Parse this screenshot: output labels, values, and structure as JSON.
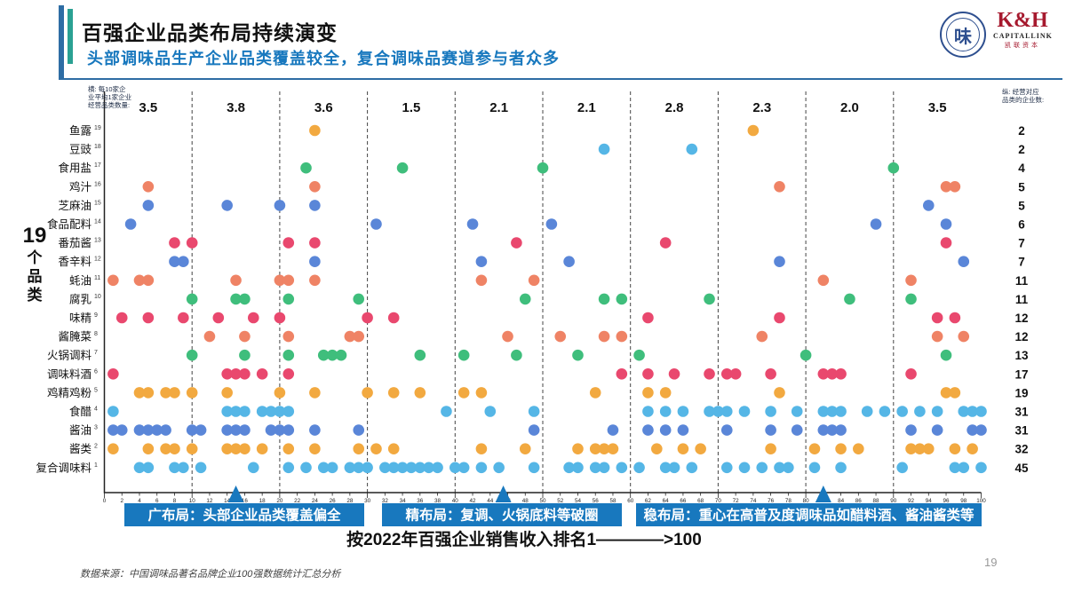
{
  "header": {
    "title": "百强企业品类布局持续演变",
    "subtitle": "头部调味品生产企业品类覆盖较全，复合调味品赛道参与者众多"
  },
  "logos": {
    "association_mark": "味",
    "capitallink_mark": "K&H",
    "capitallink_name": "CAPITALLINK",
    "capitallink_cn": "凯联资本"
  },
  "left_caption": {
    "number": "19",
    "chars": [
      "个",
      "品",
      "类"
    ]
  },
  "chart_data": {
    "type": "scatter",
    "title": "",
    "xlabel": "按2022年百强企业销售收入排名1————>100",
    "x_range": [
      0,
      100
    ],
    "x_tick_step": 2,
    "grid": "dashed vertical dividers every 10 ranks",
    "left_note_lines": [
      "横: 每10家企",
      "业平均1家企业",
      "经营品类数量:"
    ],
    "right_note_lines": [
      "纵: 经营对应",
      "品类的企业数:"
    ],
    "decade_averages": [
      "3.5",
      "3.8",
      "3.6",
      "1.5",
      "2.1",
      "2.1",
      "2.8",
      "2.3",
      "2.0",
      "3.5"
    ],
    "colors": {
      "orange": "#f2a940",
      "lightblue": "#55b6e6",
      "blue": "#5a86d8",
      "green": "#3fbe7c",
      "salmon": "#ef8365",
      "crimson": "#e9486e"
    },
    "categories": [
      {
        "label": "鱼露",
        "index": 19,
        "count": 2,
        "color": "orange",
        "ranks": [
          24,
          74
        ]
      },
      {
        "label": "豆豉",
        "index": 18,
        "count": 2,
        "color": "lightblue",
        "ranks": [
          57,
          67
        ]
      },
      {
        "label": "食用盐",
        "index": 17,
        "count": 4,
        "color": "green",
        "ranks": [
          23,
          34,
          50,
          90
        ]
      },
      {
        "label": "鸡汁",
        "index": 16,
        "count": 5,
        "color": "salmon",
        "ranks": [
          5,
          24,
          77,
          96,
          97
        ]
      },
      {
        "label": "芝麻油",
        "index": 15,
        "count": 5,
        "color": "blue",
        "ranks": [
          5,
          14,
          20,
          24,
          94
        ]
      },
      {
        "label": "食品配料",
        "index": 14,
        "count": 6,
        "color": "blue",
        "ranks": [
          3,
          31,
          42,
          51,
          88,
          96
        ]
      },
      {
        "label": "番茄酱",
        "index": 13,
        "count": 7,
        "color": "crimson",
        "ranks": [
          8,
          10,
          21,
          24,
          47,
          64,
          96
        ]
      },
      {
        "label": "香辛料",
        "index": 12,
        "count": 7,
        "color": "blue",
        "ranks": [
          8,
          9,
          24,
          43,
          53,
          77,
          98
        ]
      },
      {
        "label": "蚝油",
        "index": 11,
        "count": 11,
        "color": "salmon",
        "ranks": [
          1,
          4,
          5,
          15,
          20,
          21,
          24,
          43,
          49,
          82,
          92
        ]
      },
      {
        "label": "腐乳",
        "index": 10,
        "count": 11,
        "color": "green",
        "ranks": [
          10,
          15,
          16,
          21,
          29,
          48,
          57,
          59,
          69,
          85,
          92
        ]
      },
      {
        "label": "味精",
        "index": 9,
        "count": 12,
        "color": "crimson",
        "ranks": [
          2,
          5,
          9,
          13,
          17,
          20,
          30,
          33,
          62,
          77,
          95,
          97
        ]
      },
      {
        "label": "酱腌菜",
        "index": 8,
        "count": 12,
        "color": "salmon",
        "ranks": [
          12,
          16,
          21,
          28,
          29,
          46,
          52,
          57,
          59,
          75,
          95,
          98
        ]
      },
      {
        "label": "火锅调料",
        "index": 7,
        "count": 13,
        "color": "green",
        "ranks": [
          10,
          16,
          21,
          25,
          26,
          27,
          36,
          41,
          47,
          54,
          61,
          80,
          96
        ]
      },
      {
        "label": "调味料酒",
        "index": 6,
        "count": 17,
        "color": "crimson",
        "ranks": [
          1,
          14,
          15,
          16,
          18,
          21,
          59,
          62,
          65,
          69,
          71,
          72,
          76,
          82,
          83,
          84,
          92
        ]
      },
      {
        "label": "鸡精鸡粉",
        "index": 5,
        "count": 19,
        "color": "orange",
        "ranks": [
          4,
          5,
          7,
          8,
          10,
          14,
          20,
          24,
          30,
          33,
          36,
          41,
          43,
          56,
          62,
          64,
          77,
          96,
          97
        ]
      },
      {
        "label": "食醋",
        "index": 4,
        "count": 31,
        "color": "lightblue",
        "ranks": [
          1,
          14,
          15,
          16,
          18,
          19,
          20,
          21,
          39,
          44,
          49,
          62,
          64,
          66,
          69,
          70,
          71,
          73,
          76,
          79,
          82,
          83,
          84,
          87,
          89,
          91,
          93,
          95,
          98,
          99,
          100
        ]
      },
      {
        "label": "酱油",
        "index": 3,
        "count": 31,
        "color": "blue",
        "ranks": [
          1,
          2,
          4,
          5,
          6,
          7,
          10,
          11,
          14,
          15,
          16,
          19,
          20,
          21,
          24,
          29,
          49,
          58,
          62,
          64,
          66,
          71,
          76,
          79,
          82,
          83,
          84,
          92,
          95,
          99,
          100
        ]
      },
      {
        "label": "酱类",
        "index": 2,
        "count": 32,
        "color": "orange",
        "ranks": [
          1,
          5,
          7,
          8,
          10,
          14,
          15,
          16,
          18,
          21,
          24,
          29,
          31,
          33,
          43,
          48,
          54,
          56,
          57,
          58,
          63,
          66,
          68,
          76,
          81,
          84,
          86,
          92,
          93,
          94,
          97,
          99
        ]
      },
      {
        "label": "复合调味料",
        "index": 1,
        "count": 45,
        "color": "lightblue",
        "ranks": [
          4,
          5,
          8,
          9,
          11,
          17,
          21,
          23,
          25,
          26,
          28,
          29,
          30,
          32,
          33,
          34,
          35,
          36,
          37,
          38,
          40,
          41,
          43,
          45,
          49,
          53,
          54,
          56,
          57,
          59,
          61,
          64,
          65,
          67,
          71,
          73,
          75,
          77,
          78,
          81,
          84,
          91,
          97,
          98,
          100
        ]
      }
    ],
    "annotations": [
      {
        "label": "广布局：头部企业品类覆盖偏全",
        "arrow_rank": 15
      },
      {
        "label": "精布局：复调、火锅底料等破圈",
        "arrow_rank": 45.5
      },
      {
        "label": "稳布局：重心在高普及度调味品如醋料酒、酱油酱类等",
        "arrow_rank": 82
      }
    ],
    "annotation_color": "#1878be",
    "legend_position": "none"
  },
  "axis_title": "按2022年百强企业销售收入排名1————>100",
  "footer": {
    "source": "数据来源：中国调味品著名品牌企业100强数据统计汇总分析"
  },
  "page_number": "19"
}
